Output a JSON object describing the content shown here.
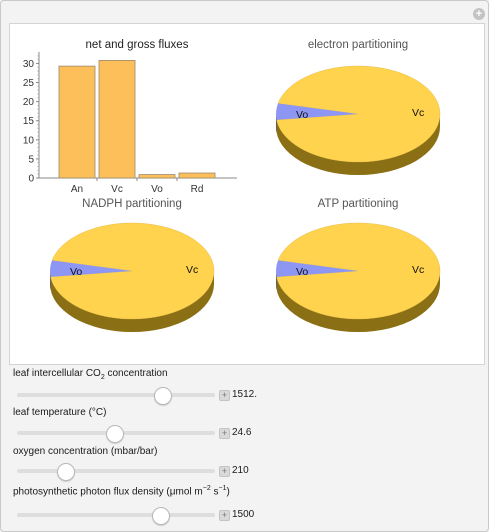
{
  "panel": {
    "bar_chart": {
      "title": "net and gross fluxes",
      "title_color": "#222222"
    },
    "pies": [
      {
        "id": "electron",
        "title": "electron partitioning"
      },
      {
        "id": "nadph",
        "title": "NADPH partitioning"
      },
      {
        "id": "atp",
        "title": "ATP partitioning"
      }
    ],
    "pie_labels": {
      "vo": "Vo",
      "vc": "Vc"
    },
    "colors": {
      "bar_fill": "#fdbf5a",
      "bar_stroke": "#9a8a6a",
      "pie_vc": "#ffd34e",
      "pie_vc_side": "#8a6f14",
      "pie_vo": "#8d96f2",
      "pie_vo_side": "#4d5390",
      "pie_title": "#555555"
    }
  },
  "controls": [
    {
      "label_pre": "leaf intercellular CO",
      "label_sub": "2",
      "label_post": " concentration",
      "value": "1512.",
      "position": 0.73
    },
    {
      "label_pre": "leaf temperature (°C)",
      "label_sub": "",
      "label_post": "",
      "value": "24.6",
      "position": 0.49
    },
    {
      "label_pre": "oxygen concentration (mbar/bar)",
      "label_sub": "",
      "label_post": "",
      "value": "210",
      "position": 0.24
    },
    {
      "label_pre": "photosynthetic photon flux density (μmol m",
      "label_sup1": "−2",
      "label_mid": " s",
      "label_sup2": "−1",
      "label_post": ")",
      "value": "1500",
      "position": 0.72
    }
  ],
  "chart_data": [
    {
      "type": "bar",
      "title": "net and gross fluxes",
      "categories": [
        "An",
        "Vc",
        "Vo",
        "Rd"
      ],
      "values": [
        29.3,
        30.8,
        0.9,
        1.3
      ],
      "ylim": [
        0,
        33
      ],
      "yticks": [
        0,
        5,
        10,
        15,
        20,
        25,
        30
      ],
      "xlabel": "",
      "ylabel": ""
    },
    {
      "type": "pie",
      "title": "electron partitioning",
      "categories": [
        "Vc",
        "Vo"
      ],
      "values": [
        94.5,
        5.5
      ]
    },
    {
      "type": "pie",
      "title": "NADPH partitioning",
      "categories": [
        "Vc",
        "Vo"
      ],
      "values": [
        94.5,
        5.5
      ]
    },
    {
      "type": "pie",
      "title": "ATP partitioning",
      "categories": [
        "Vc",
        "Vo"
      ],
      "values": [
        94.5,
        5.5
      ]
    }
  ]
}
